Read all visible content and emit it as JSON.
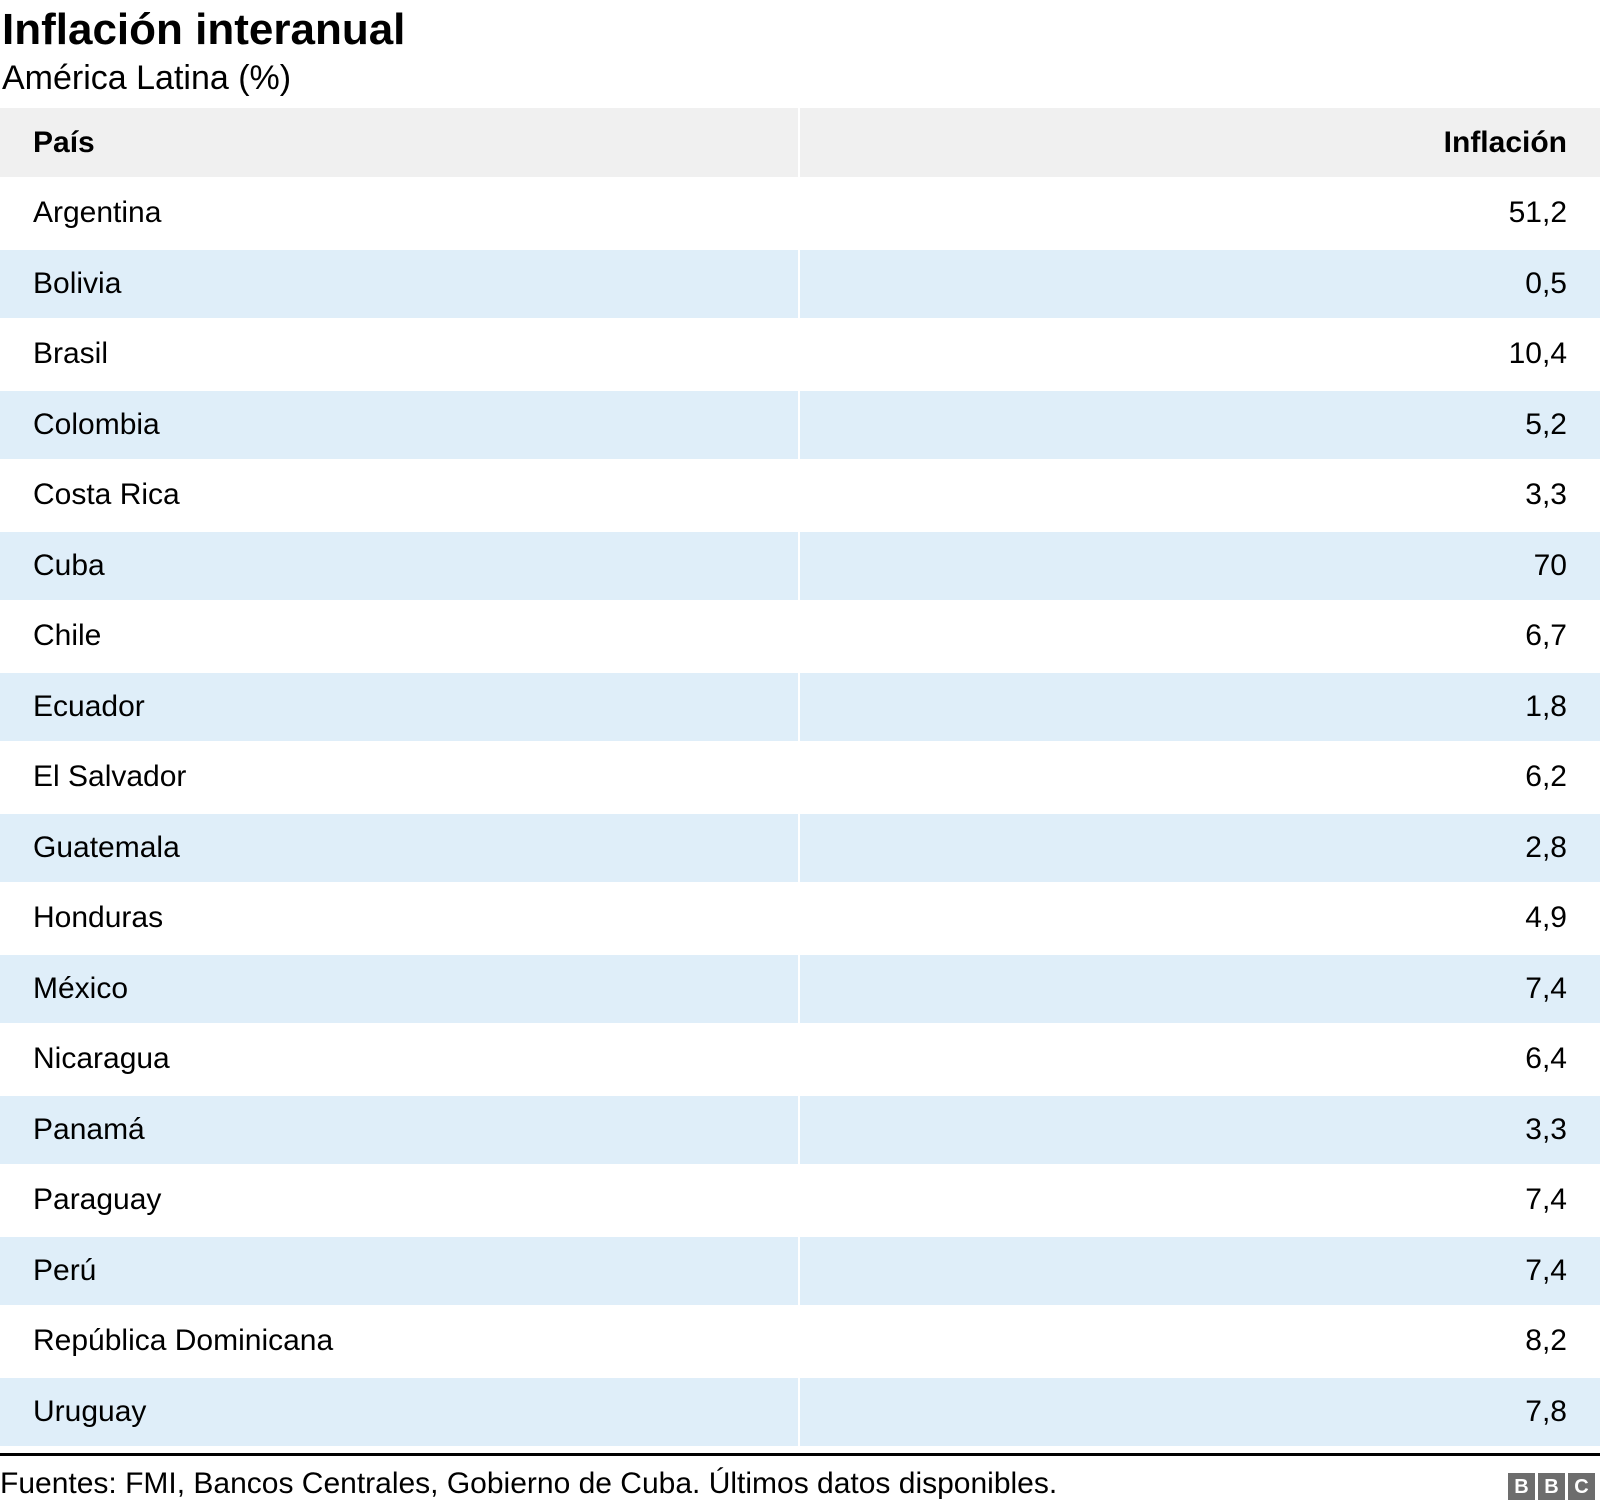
{
  "title": "Inflación interanual",
  "subtitle": "América Latina (%)",
  "table": {
    "columns": [
      "País",
      "Inflación"
    ],
    "rows": [
      {
        "country": "Argentina",
        "value": "51,2"
      },
      {
        "country": "Bolivia",
        "value": "0,5"
      },
      {
        "country": "Brasil",
        "value": "10,4"
      },
      {
        "country": "Colombia",
        "value": "5,2"
      },
      {
        "country": "Costa Rica",
        "value": "3,3"
      },
      {
        "country": "Cuba",
        "value": "70"
      },
      {
        "country": "Chile",
        "value": "6,7"
      },
      {
        "country": "Ecuador",
        "value": "1,8"
      },
      {
        "country": "El Salvador",
        "value": "6,2"
      },
      {
        "country": "Guatemala",
        "value": "2,8"
      },
      {
        "country": "Honduras",
        "value": "4,9"
      },
      {
        "country": "México",
        "value": "7,4"
      },
      {
        "country": "Nicaragua",
        "value": "6,4"
      },
      {
        "country": "Panamá",
        "value": "3,3"
      },
      {
        "country": "Paraguay",
        "value": "7,4"
      },
      {
        "country": "Perú",
        "value": "7,4"
      },
      {
        "country": "República Dominicana",
        "value": "8,2"
      },
      {
        "country": "Uruguay",
        "value": "7,8"
      }
    ]
  },
  "footer": {
    "source": "Fuentes: FMI, Bancos Centrales, Gobierno de Cuba. Últimos datos disponibles.",
    "logo_letters": [
      "B",
      "B",
      "C"
    ]
  },
  "colors": {
    "row_alt": "#dfeef9",
    "header_bg": "#f0f0f0",
    "rule": "#000000",
    "logo_gray": "#6d6d6d"
  },
  "chart_data": {
    "type": "table",
    "title": "Inflación interanual",
    "subtitle": "América Latina (%)",
    "columns": [
      "País",
      "Inflación"
    ],
    "categories": [
      "Argentina",
      "Bolivia",
      "Brasil",
      "Colombia",
      "Costa Rica",
      "Cuba",
      "Chile",
      "Ecuador",
      "El Salvador",
      "Guatemala",
      "Honduras",
      "México",
      "Nicaragua",
      "Panamá",
      "Paraguay",
      "Perú",
      "República Dominicana",
      "Uruguay"
    ],
    "values": [
      51.2,
      0.5,
      10.4,
      5.2,
      3.3,
      70,
      6.7,
      1.8,
      6.2,
      2.8,
      4.9,
      7.4,
      6.4,
      3.3,
      7.4,
      7.4,
      8.2,
      7.8
    ],
    "value_format": "decimal-comma",
    "unit": "%",
    "source": "Fuentes: FMI, Bancos Centrales, Gobierno de Cuba. Últimos datos disponibles.",
    "layout_hints": {
      "zebra_rows": true,
      "first_row_background": "white",
      "alt_row_background": "#dfeef9",
      "header_background": "#f0f0f0",
      "value_alignment": "right"
    }
  }
}
